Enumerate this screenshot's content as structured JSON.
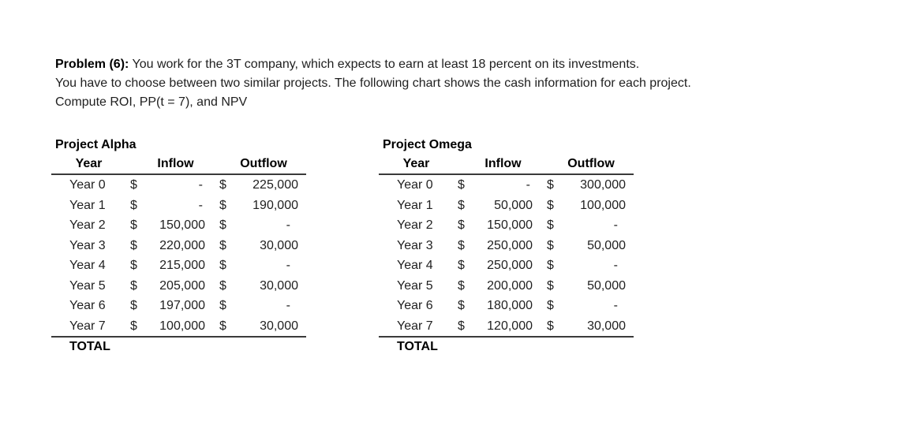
{
  "problem": {
    "label": "Problem (6):",
    "line1": " You work for the 3T company, which expects to earn at least 18 percent on its investments.",
    "line2": "You have to choose between two similar projects. The following chart shows the cash information for each project.",
    "line3": "Compute ROI, PP(t = 7), and NPV"
  },
  "projects": {
    "alpha": {
      "title": "Project Alpha",
      "headers": {
        "year": "Year",
        "inflow": "Inflow",
        "outflow": "Outflow"
      },
      "rows": [
        {
          "year": "Year 0",
          "inflow_sign": "$",
          "inflow": "-",
          "outflow_sign": "$",
          "outflow": "225,000"
        },
        {
          "year": "Year 1",
          "inflow_sign": "$",
          "inflow": "-",
          "outflow_sign": "$",
          "outflow": "190,000"
        },
        {
          "year": "Year 2",
          "inflow_sign": "$",
          "inflow": "150,000",
          "outflow_sign": "$",
          "outflow": "-"
        },
        {
          "year": "Year 3",
          "inflow_sign": "$",
          "inflow": "220,000",
          "outflow_sign": "$",
          "outflow": "30,000"
        },
        {
          "year": "Year 4",
          "inflow_sign": "$",
          "inflow": "215,000",
          "outflow_sign": "$",
          "outflow": "-"
        },
        {
          "year": "Year 5",
          "inflow_sign": "$",
          "inflow": "205,000",
          "outflow_sign": "$",
          "outflow": "30,000"
        },
        {
          "year": "Year 6",
          "inflow_sign": "$",
          "inflow": "197,000",
          "outflow_sign": "$",
          "outflow": "-"
        },
        {
          "year": "Year 7",
          "inflow_sign": "$",
          "inflow": "100,000",
          "outflow_sign": "$",
          "outflow": "30,000"
        }
      ],
      "total_label": "TOTAL"
    },
    "omega": {
      "title": "Project Omega",
      "headers": {
        "year": "Year",
        "inflow": "Inflow",
        "outflow": "Outflow"
      },
      "rows": [
        {
          "year": "Year 0",
          "inflow_sign": "$",
          "inflow": "-",
          "outflow_sign": "$",
          "outflow": "300,000"
        },
        {
          "year": "Year 1",
          "inflow_sign": "$",
          "inflow": "50,000",
          "outflow_sign": "$",
          "outflow": "100,000"
        },
        {
          "year": "Year 2",
          "inflow_sign": "$",
          "inflow": "150,000",
          "outflow_sign": "$",
          "outflow": "-"
        },
        {
          "year": "Year 3",
          "inflow_sign": "$",
          "inflow": "250,000",
          "outflow_sign": "$",
          "outflow": "50,000"
        },
        {
          "year": "Year 4",
          "inflow_sign": "$",
          "inflow": "250,000",
          "outflow_sign": "$",
          "outflow": "-"
        },
        {
          "year": "Year 5",
          "inflow_sign": "$",
          "inflow": "200,000",
          "outflow_sign": "$",
          "outflow": "50,000"
        },
        {
          "year": "Year 6",
          "inflow_sign": "$",
          "inflow": "180,000",
          "outflow_sign": "$",
          "outflow": "-"
        },
        {
          "year": "Year 7",
          "inflow_sign": "$",
          "inflow": "120,000",
          "outflow_sign": "$",
          "outflow": "30,000"
        }
      ],
      "total_label": "TOTAL"
    }
  }
}
